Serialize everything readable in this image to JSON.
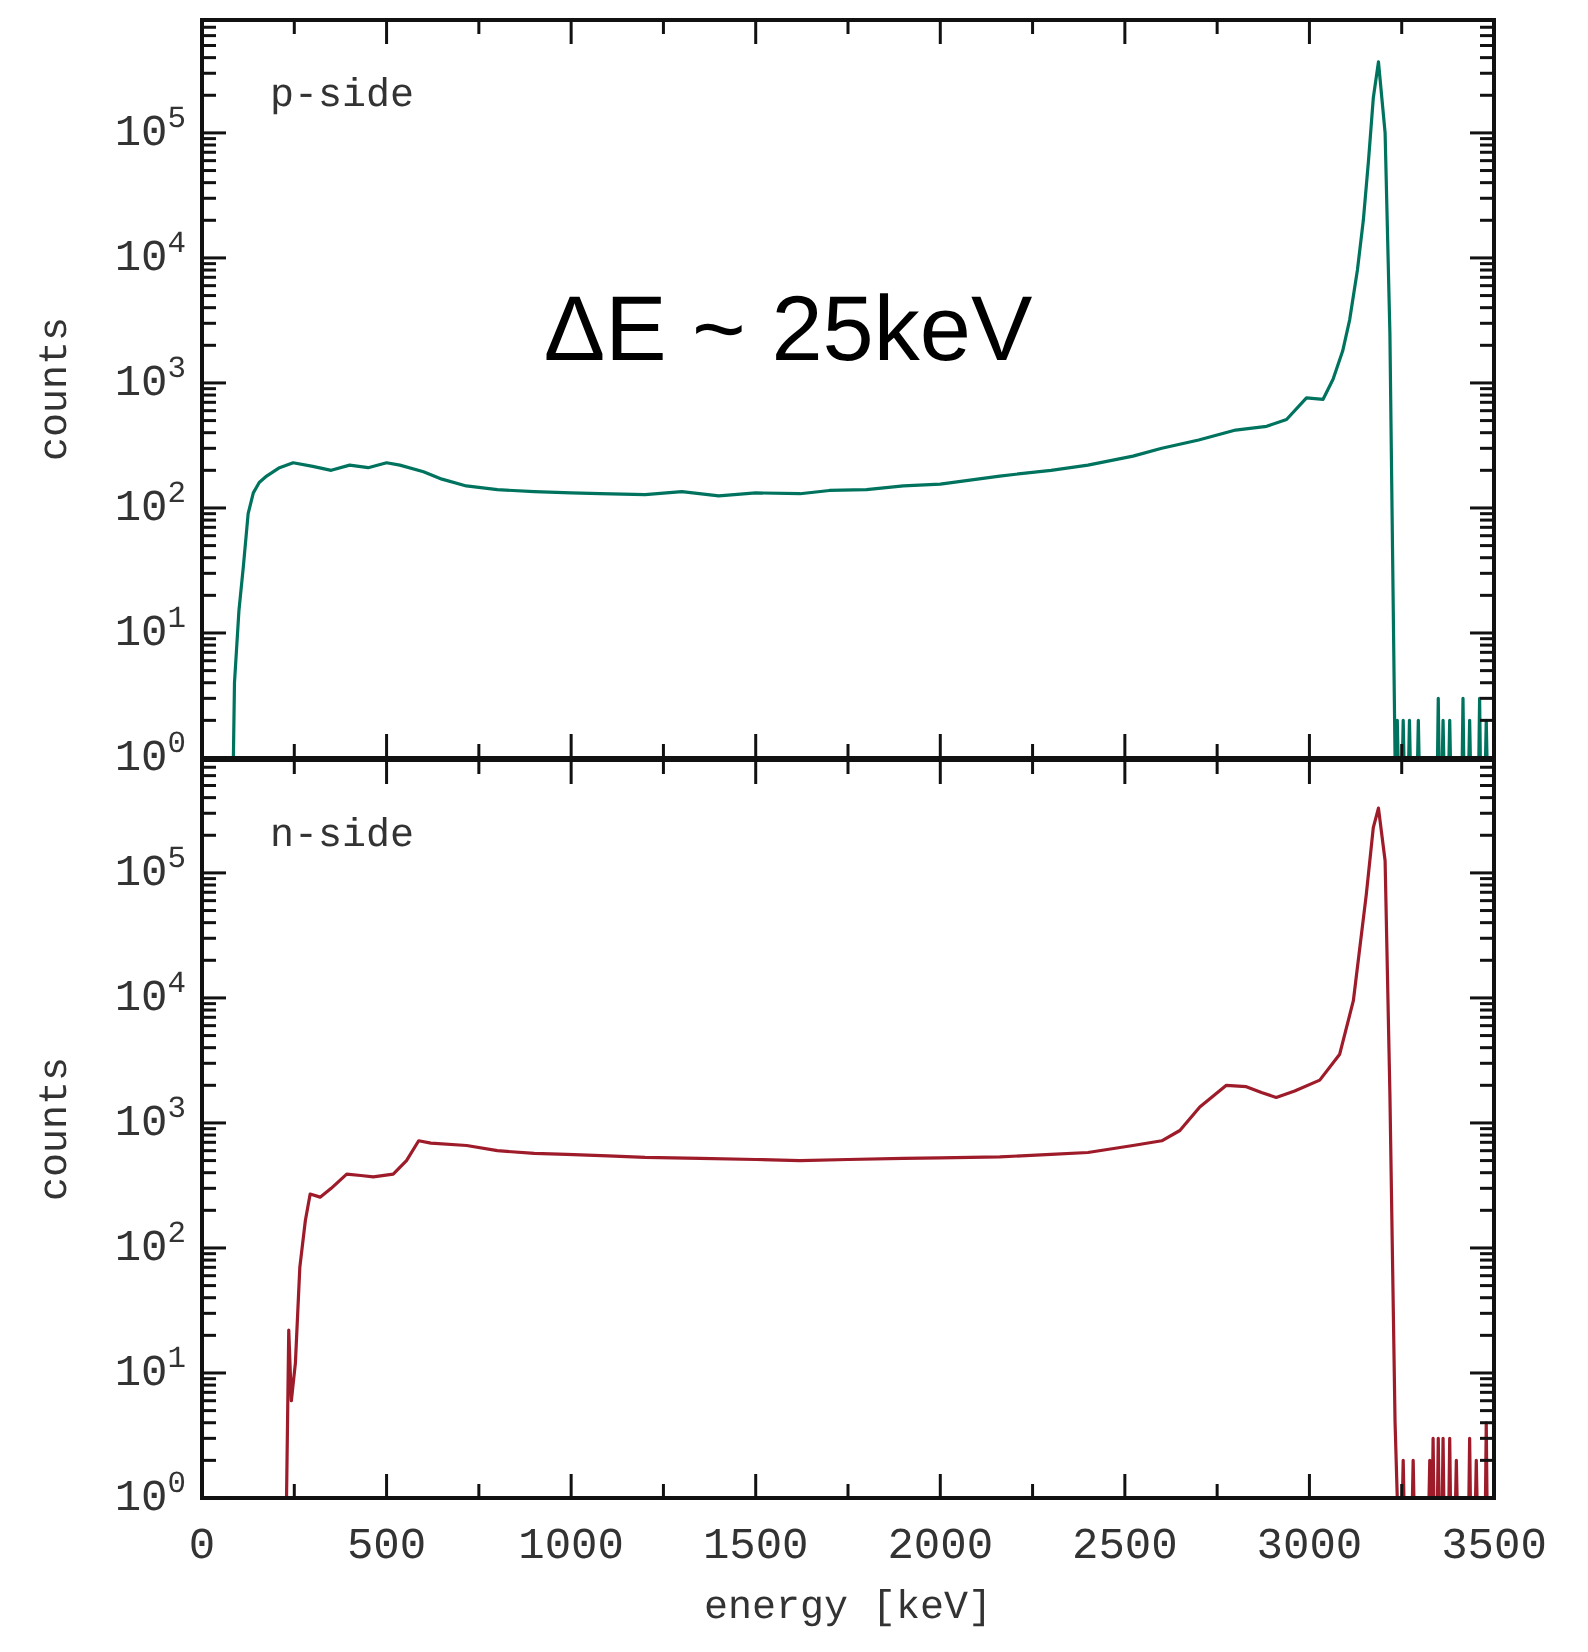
{
  "chart_data": [
    {
      "type": "line",
      "ylabel": "counts",
      "annotations": [
        "p-side",
        "ΔE ~ 25keV"
      ],
      "log": true,
      "tick_labels": "y",
      "xlim": [
        0,
        3500
      ],
      "ylim": [
        1,
        800000
      ],
      "xticks": [
        0,
        {
          "value": 250,
          "label": null
        },
        500,
        {
          "value": 750,
          "label": null
        },
        1000,
        {
          "value": 1250,
          "label": null
        },
        1500,
        {
          "value": 1750,
          "label": null
        },
        2000,
        {
          "value": 2250,
          "label": null
        },
        2500,
        {
          "value": 2750,
          "label": null
        },
        3000,
        {
          "value": 3250,
          "label": null
        },
        3500
      ],
      "yticks": [
        {
          "value": 1,
          "label": "10$^{0}$"
        },
        {
          "value": 2,
          "label": null
        },
        {
          "value": 3,
          "label": null
        },
        {
          "value": 4,
          "label": null
        },
        {
          "value": 5,
          "label": null
        },
        {
          "value": 6,
          "label": null
        },
        {
          "value": 7,
          "label": null
        },
        {
          "value": 8,
          "label": null
        },
        {
          "value": 9,
          "label": null
        },
        {
          "value": 10,
          "label": "10$^{1}$"
        },
        {
          "value": 20,
          "label": null
        },
        {
          "value": 30,
          "label": null
        },
        {
          "value": 40,
          "label": null
        },
        {
          "value": 50,
          "label": null
        },
        {
          "value": 60,
          "label": null
        },
        {
          "value": 70,
          "label": null
        },
        {
          "value": 80,
          "label": null
        },
        {
          "value": 90,
          "label": null
        },
        {
          "value": 100,
          "label": "10$^{2}$"
        },
        {
          "value": 200,
          "label": null
        },
        {
          "value": 300,
          "label": null
        },
        {
          "value": 400,
          "label": null
        },
        {
          "value": 500,
          "label": null
        },
        {
          "value": 600,
          "label": null
        },
        {
          "value": 700,
          "label": null
        },
        {
          "value": 800,
          "label": null
        },
        {
          "value": 900,
          "label": null
        },
        {
          "value": 1000,
          "label": "10$^{3}$"
        },
        {
          "value": 2000,
          "label": null
        },
        {
          "value": 3000,
          "label": null
        },
        {
          "value": 4000,
          "label": null
        },
        {
          "value": 5000,
          "label": null
        },
        {
          "value": 6000,
          "label": null
        },
        {
          "value": 7000,
          "label": null
        },
        {
          "value": 8000,
          "label": null
        },
        {
          "value": 9000,
          "label": null
        },
        {
          "value": 10000,
          "label": "10$^{4}$"
        },
        {
          "value": 20000,
          "label": null
        },
        {
          "value": 30000,
          "label": null
        },
        {
          "value": 40000,
          "label": null
        },
        {
          "value": 50000,
          "label": null
        },
        {
          "value": 60000,
          "label": null
        },
        {
          "value": 70000,
          "label": null
        },
        {
          "value": 80000,
          "label": null
        },
        {
          "value": 90000,
          "label": null
        },
        {
          "value": 100000,
          "label": "10$^{5}$"
        },
        {
          "value": 200000,
          "label": null
        },
        {
          "value": 300000,
          "label": null
        },
        {
          "value": 400000,
          "label": null
        },
        {
          "value": 500000,
          "label": null
        },
        {
          "value": 600000,
          "label": null
        },
        {
          "value": 700000,
          "label": null
        },
        {
          "value": 800000,
          "label": null
        }
      ],
      "series": [
        {
          "color": "#00735f",
          "x": [
            85,
            88,
            100,
            112,
            125,
            139,
            155,
            175,
            210,
            247,
            300,
            350,
            400,
            450,
            500,
            536,
            600,
            650,
            716,
            800,
            900,
            1000,
            1078,
            1200,
            1300,
            1400,
            1500,
            1620,
            1700,
            1800,
            1900,
            2000,
            2161,
            2300,
            2400,
            2522,
            2600,
            2700,
            2800,
            2884,
            2938,
            2992,
            3037,
            3064,
            3090,
            3109,
            3130,
            3146,
            3160,
            3173,
            3187,
            3205,
            3218,
            3232,
            3236,
            3238,
            3240,
            3252,
            3254,
            3256,
            3269,
            3271,
            3273,
            3293,
            3295,
            3297,
            3347,
            3349,
            3351,
            3360,
            3362,
            3364,
            3378,
            3380,
            3382,
            3414,
            3416,
            3418,
            3432,
            3434,
            3436,
            3459,
            3461,
            3463,
            3477,
            3479,
            3481,
            3500
          ],
          "values": [
            1,
            4,
            15,
            34,
            90,
            132,
            160,
            180,
            210,
            230,
            215,
            200,
            220,
            210,
            230,
            220,
            195,
            170,
            150,
            140,
            135,
            132,
            130,
            128,
            135,
            125,
            132,
            130,
            138,
            140,
            150,
            155,
            180,
            200,
            220,
            260,
            300,
            350,
            420,
            450,
            510,
            760,
            740,
            1070,
            1800,
            3200,
            8000,
            20000,
            60000,
            190000,
            370000,
            100000,
            2500,
            1,
            1,
            2,
            1,
            1,
            2,
            1,
            1,
            2,
            1,
            1,
            2,
            1,
            1,
            3,
            1,
            1,
            2,
            1,
            1,
            2,
            1,
            1,
            3,
            1,
            1,
            2,
            1,
            1,
            3,
            1,
            1,
            2,
            1,
            1
          ]
        }
      ]
    },
    {
      "type": "line",
      "xlabel": "energy [keV]",
      "ylabel": "counts",
      "annotations": [
        "n-side"
      ],
      "log": true,
      "xlim": [
        0,
        3500
      ],
      "ylim": [
        1,
        800000
      ],
      "xticks": [
        0,
        {
          "value": 250,
          "label": null
        },
        500,
        {
          "value": 750,
          "label": null
        },
        1000,
        {
          "value": 1250,
          "label": null
        },
        1500,
        {
          "value": 1750,
          "label": null
        },
        2000,
        {
          "value": 2250,
          "label": null
        },
        2500,
        {
          "value": 2750,
          "label": null
        },
        3000,
        {
          "value": 3250,
          "label": null
        },
        3500
      ],
      "yticks": [
        {
          "value": 1,
          "label": "10$^{0}$"
        },
        {
          "value": 2,
          "label": null
        },
        {
          "value": 3,
          "label": null
        },
        {
          "value": 4,
          "label": null
        },
        {
          "value": 5,
          "label": null
        },
        {
          "value": 6,
          "label": null
        },
        {
          "value": 7,
          "label": null
        },
        {
          "value": 8,
          "label": null
        },
        {
          "value": 9,
          "label": null
        },
        {
          "value": 10,
          "label": "10$^{1}$"
        },
        {
          "value": 20,
          "label": null
        },
        {
          "value": 30,
          "label": null
        },
        {
          "value": 40,
          "label": null
        },
        {
          "value": 50,
          "label": null
        },
        {
          "value": 60,
          "label": null
        },
        {
          "value": 70,
          "label": null
        },
        {
          "value": 80,
          "label": null
        },
        {
          "value": 90,
          "label": null
        },
        {
          "value": 100,
          "label": "10$^{2}$"
        },
        {
          "value": 200,
          "label": null
        },
        {
          "value": 300,
          "label": null
        },
        {
          "value": 400,
          "label": null
        },
        {
          "value": 500,
          "label": null
        },
        {
          "value": 600,
          "label": null
        },
        {
          "value": 700,
          "label": null
        },
        {
          "value": 800,
          "label": null
        },
        {
          "value": 900,
          "label": null
        },
        {
          "value": 1000,
          "label": "10$^{3}$"
        },
        {
          "value": 2000,
          "label": null
        },
        {
          "value": 3000,
          "label": null
        },
        {
          "value": 4000,
          "label": null
        },
        {
          "value": 5000,
          "label": null
        },
        {
          "value": 6000,
          "label": null
        },
        {
          "value": 7000,
          "label": null
        },
        {
          "value": 8000,
          "label": null
        },
        {
          "value": 9000,
          "label": null
        },
        {
          "value": 10000,
          "label": "10$^{4}$"
        },
        {
          "value": 20000,
          "label": null
        },
        {
          "value": 30000,
          "label": null
        },
        {
          "value": 40000,
          "label": null
        },
        {
          "value": 50000,
          "label": null
        },
        {
          "value": 60000,
          "label": null
        },
        {
          "value": 70000,
          "label": null
        },
        {
          "value": 80000,
          "label": null
        },
        {
          "value": 90000,
          "label": null
        },
        {
          "value": 100000,
          "label": "10$^{5}$"
        },
        {
          "value": 200000,
          "label": null
        },
        {
          "value": 300000,
          "label": null
        },
        {
          "value": 400000,
          "label": null
        },
        {
          "value": 500000,
          "label": null
        },
        {
          "value": 600000,
          "label": null
        },
        {
          "value": 700000,
          "label": null
        },
        {
          "value": 800000,
          "label": null
        }
      ],
      "series": [
        {
          "color": "#9e1b2a",
          "x": [
            229,
            235,
            242,
            253,
            265,
            280,
            293,
            320,
            350,
            392,
            430,
            464,
            518,
            554,
            587,
            620,
            717,
            800,
            900,
            988,
            1100,
            1200,
            1349,
            1500,
            1620,
            1750,
            1900,
            2000,
            2161,
            2300,
            2400,
            2522,
            2600,
            2649,
            2703,
            2775,
            2829,
            2870,
            2910,
            2960,
            3028,
            3082,
            3119,
            3154,
            3173,
            3187,
            3205,
            3218,
            3232,
            3238,
            3252,
            3254,
            3256,
            3279,
            3281,
            3283,
            3324,
            3326,
            3328,
            3333,
            3335,
            3337,
            3347,
            3349,
            3351,
            3360,
            3362,
            3364,
            3378,
            3380,
            3382,
            3396,
            3398,
            3400,
            3432,
            3434,
            3436,
            3450,
            3452,
            3454,
            3477,
            3479,
            3481,
            3500
          ],
          "values": [
            1,
            22,
            6,
            12,
            70,
            166,
            270,
            255,
            300,
            390,
            380,
            370,
            390,
            500,
            720,
            690,
            660,
            600,
            570,
            560,
            545,
            530,
            520,
            510,
            500,
            510,
            520,
            525,
            535,
            560,
            580,
            660,
            720,
            870,
            1340,
            2000,
            1950,
            1750,
            1600,
            1800,
            2200,
            3550,
            9500,
            67000,
            230000,
            330000,
            125000,
            1700,
            4,
            1,
            1,
            2,
            1,
            1,
            2,
            1,
            1,
            2,
            1,
            1,
            3,
            1,
            1,
            3,
            1,
            1,
            3,
            1,
            1,
            3,
            1,
            1,
            2,
            1,
            1,
            3,
            1,
            1,
            2,
            1,
            1,
            4,
            1,
            1
          ]
        }
      ]
    }
  ]
}
